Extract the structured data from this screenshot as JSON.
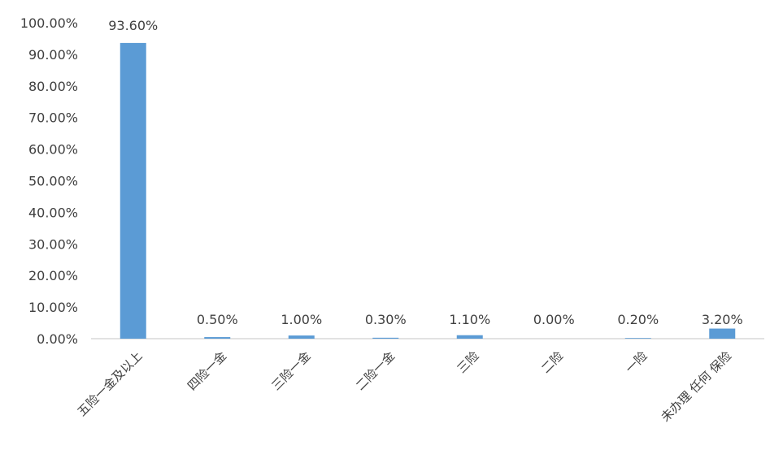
{
  "chart_data": {
    "type": "bar",
    "categories": [
      "五险一金及以上",
      "四险一金",
      "三险一金",
      "二险一金",
      "三险",
      "二险",
      "一险",
      "未办理 任何 保险"
    ],
    "values": [
      93.6,
      0.5,
      1.0,
      0.3,
      1.1,
      0.0,
      0.2,
      3.2
    ],
    "data_labels": [
      "93.60%",
      "0.50%",
      "1.00%",
      "0.30%",
      "1.10%",
      "0.00%",
      "0.20%",
      "3.20%"
    ],
    "y_tick_labels": [
      "0.00%",
      "10.00%",
      "20.00%",
      "30.00%",
      "40.00%",
      "50.00%",
      "60.00%",
      "70.00%",
      "80.00%",
      "90.00%",
      "100.00%"
    ],
    "ylim": [
      0,
      100
    ],
    "grid": false,
    "legend": "none",
    "title": "",
    "xlabel": "",
    "ylabel": "",
    "bar_color": "#5B9BD5",
    "axis_color": "#D9D9D9"
  }
}
